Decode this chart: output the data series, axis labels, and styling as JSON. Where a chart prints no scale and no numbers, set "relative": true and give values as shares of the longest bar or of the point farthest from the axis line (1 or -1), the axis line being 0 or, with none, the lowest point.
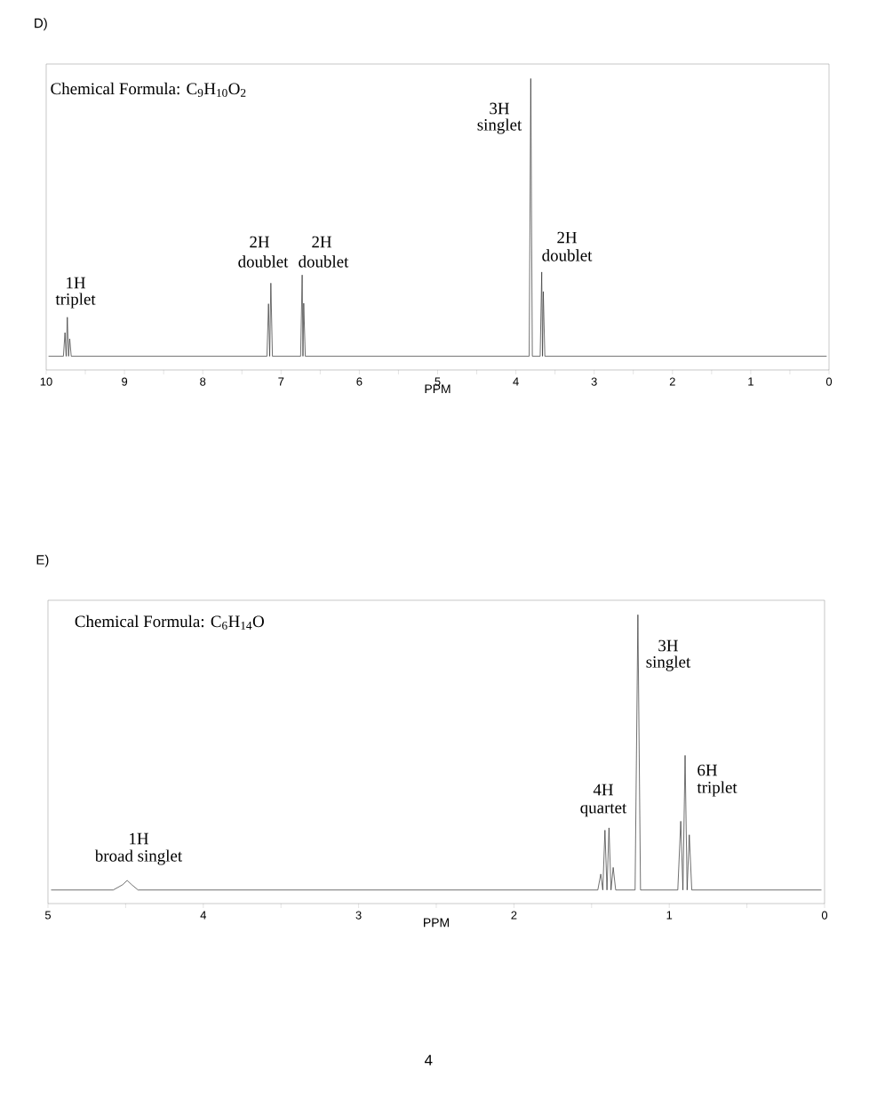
{
  "chart_data": [
    {
      "type": "line",
      "title": "D)",
      "subtitle": "Chemical Formula: C$_{9}$H$_{10}$O$_{2}$",
      "xlabel": "PPM",
      "relative": true,
      "tick_labels": "x",
      "line_style": "solid",
      "xlim": [
        10,
        0
      ],
      "xticks": [
        0,
        {
          "value": 0.5,
          "label": null
        },
        1,
        {
          "value": 1.5,
          "label": null
        },
        2,
        {
          "value": 2.5,
          "label": null
        },
        3,
        {
          "value": 3.5,
          "label": null
        },
        4,
        {
          "value": 4.5,
          "label": null
        },
        5,
        {
          "value": 5.5,
          "label": null
        },
        6,
        {
          "value": 6.5,
          "label": null
        },
        7,
        {
          "value": 7.5,
          "label": null
        },
        8,
        {
          "value": 8.5,
          "label": null
        },
        9,
        {
          "value": 9.5,
          "label": null
        },
        10
      ],
      "series": [
        {
          "color": "#333333",
          "x": [
            9.97,
            9.78,
            9.76,
            9.745,
            9.73,
            9.715,
            9.7,
            9.68,
            7.18,
            7.16,
            7.145,
            7.13,
            7.11,
            6.75,
            6.73,
            6.72,
            6.71,
            6.69,
            3.83,
            3.81,
            3.79,
            3.69,
            3.67,
            3.66,
            3.65,
            3.63,
            0.03
          ],
          "values": [
            0.047,
            0.047,
            0.128,
            0.047,
            0.181,
            0.047,
            0.107,
            0.047,
            0.047,
            0.227,
            0.047,
            0.298,
            0.047,
            0.047,
            0.326,
            0.047,
            0.229,
            0.047,
            0.047,
            1,
            0.047,
            0.047,
            0.336,
            0.047,
            0.269,
            0.047,
            0.047
          ]
        }
      ],
      "annotations": [
        "1H",
        "triplet",
        "2H",
        "doublet",
        "2H",
        "doublet",
        "3H",
        "singlet",
        "2H",
        "doublet"
      ]
    },
    {
      "type": "line",
      "title": "E)",
      "subtitle": "Chemical Formula: C$_{6}$H$_{14}$O",
      "xlabel": "PPM",
      "relative": true,
      "tick_labels": "x",
      "line_style": "solid",
      "xlim": [
        5,
        0
      ],
      "xticks": [
        0,
        {
          "value": 0.5,
          "label": null
        },
        1,
        {
          "value": 1.5,
          "label": null
        },
        2,
        {
          "value": 2.5,
          "label": null
        },
        3,
        {
          "value": 3.5,
          "label": null
        },
        4,
        {
          "value": 4.5,
          "label": null
        },
        5
      ],
      "series": [
        {
          "color": "#333333",
          "x": [
            4.98,
            4.58,
            4.52,
            4.49,
            4.46,
            4.42,
            1.46,
            1.441,
            1.428,
            1.414,
            1.401,
            1.388,
            1.375,
            1.361,
            1.345,
            1.22,
            1.202,
            1.185,
            0.945,
            0.926,
            0.912,
            0.898,
            0.885,
            0.871,
            0.855,
            0.02
          ],
          "values": [
            0.047,
            0.047,
            0.065,
            0.08,
            0.065,
            0.047,
            0.047,
            0.102,
            0.047,
            0.254,
            0.047,
            0.262,
            0.047,
            0.125,
            0.047,
            0.047,
            1,
            0.047,
            0.047,
            0.285,
            0.047,
            0.513,
            0.047,
            0.238,
            0.047,
            0.047
          ]
        }
      ],
      "annotations": [
        "1H",
        "broad singlet",
        "4H",
        "quartet",
        "3H",
        "singlet",
        "6H",
        "triplet",
        "4"
      ]
    }
  ]
}
